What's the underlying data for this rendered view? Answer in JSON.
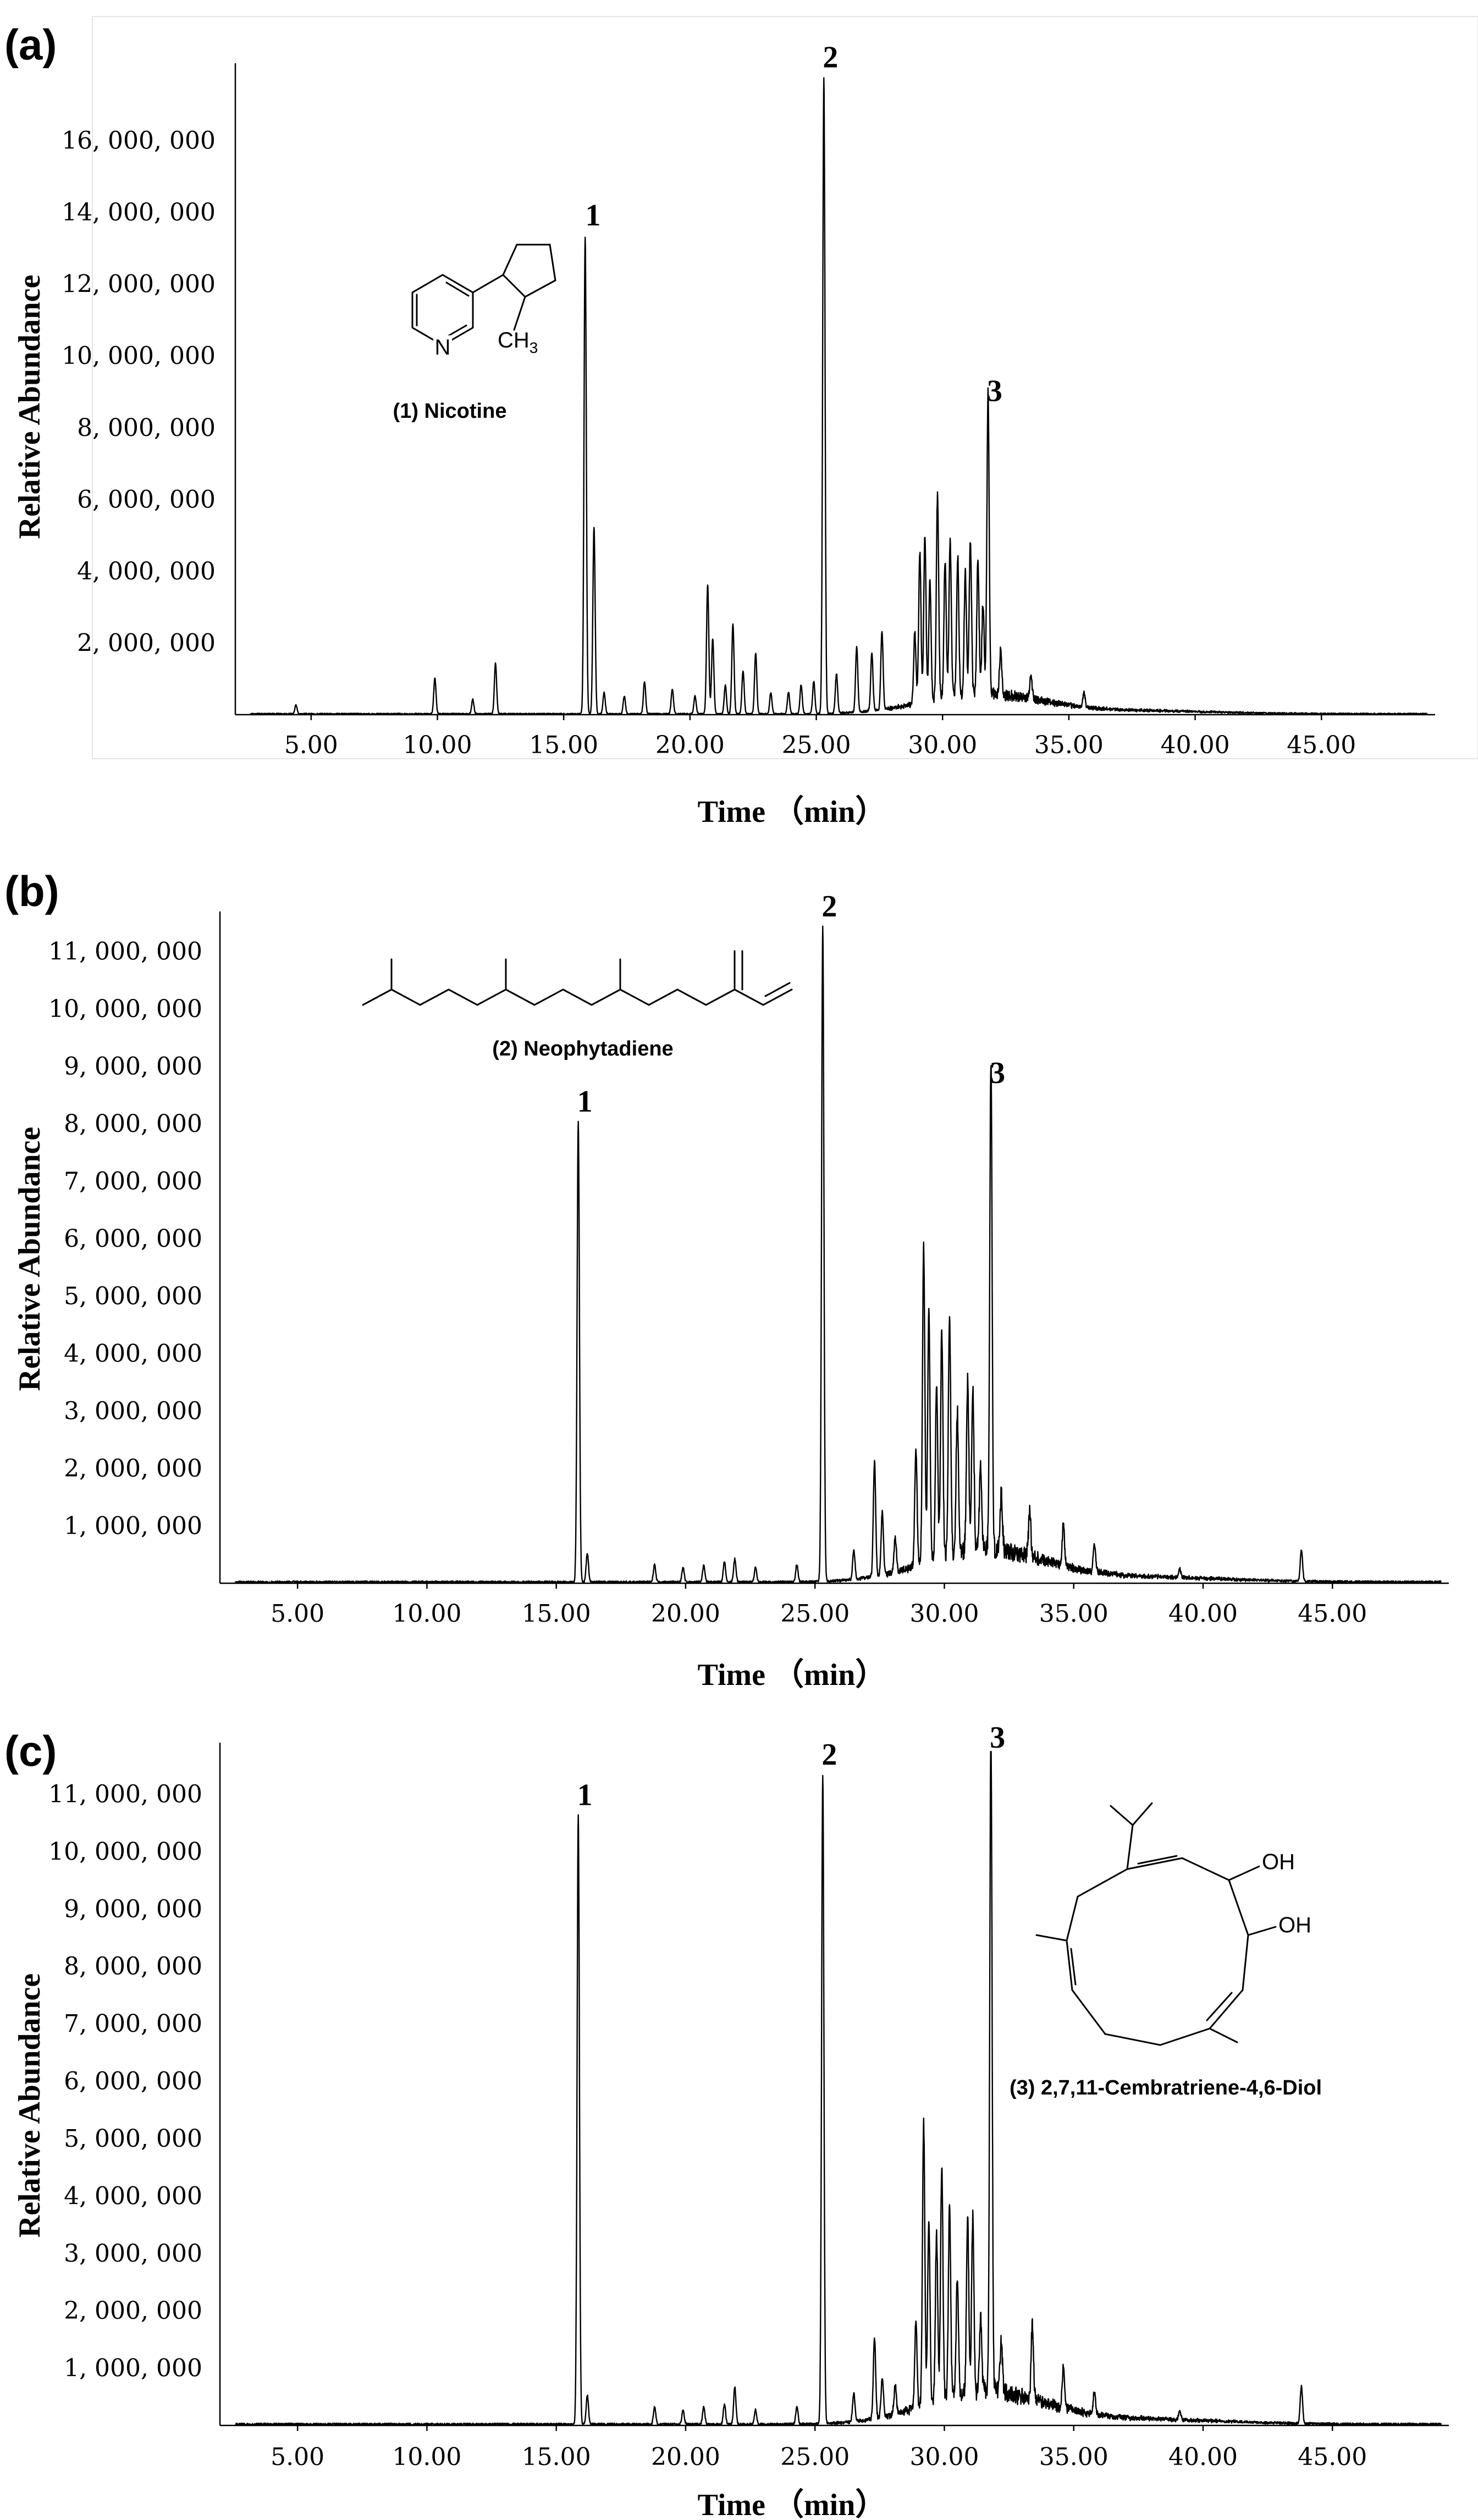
{
  "chart_data": [
    {
      "panel": "(a)",
      "type": "line",
      "xlabel": "Time （min）",
      "ylabel": "Relative Abundance",
      "xlim": [
        2,
        49.5
      ],
      "ylim": [
        0,
        18000000
      ],
      "x_tick_labels": [
        "5.00",
        "10.00",
        "15.00",
        "20.00",
        "25.00",
        "30.00",
        "35.00",
        "40.00",
        "45.00"
      ],
      "x_ticks": [
        5,
        10,
        15,
        20,
        25,
        30,
        35,
        40,
        45
      ],
      "y_tick_labels": [
        "2, 000, 000",
        "4, 000, 000",
        "6, 000, 000",
        "8, 000, 000",
        "10, 000, 000",
        "12, 000, 000",
        "14, 000, 000",
        "16, 000, 000"
      ],
      "y_ticks": [
        2000000,
        4000000,
        6000000,
        8000000,
        10000000,
        12000000,
        14000000,
        16000000
      ],
      "peak_labels": [
        {
          "label": "1",
          "x": 15.9,
          "y": 13300000
        },
        {
          "label": "2",
          "x": 25.3,
          "y": 17700000
        },
        {
          "label": "3",
          "x": 31.8,
          "y": 8400000
        }
      ],
      "molecule_caption": "(1)  Nicotine",
      "series": [
        {
          "peaks": [
            [
              4.4,
              250000
            ],
            [
              9.9,
              1000000
            ],
            [
              11.4,
              400000
            ],
            [
              12.3,
              1400000
            ],
            [
              15.85,
              13300000
            ],
            [
              16.2,
              5200000
            ],
            [
              16.6,
              600000
            ],
            [
              17.4,
              500000
            ],
            [
              18.2,
              900000
            ],
            [
              19.3,
              700000
            ],
            [
              20.2,
              500000
            ],
            [
              20.7,
              3600000
            ],
            [
              20.9,
              2100000
            ],
            [
              21.4,
              800000
            ],
            [
              21.7,
              2500000
            ],
            [
              22.1,
              1200000
            ],
            [
              22.6,
              1700000
            ],
            [
              23.2,
              600000
            ],
            [
              23.9,
              600000
            ],
            [
              24.4,
              800000
            ],
            [
              24.9,
              900000
            ],
            [
              25.3,
              17700000
            ],
            [
              25.8,
              1100000
            ],
            [
              26.6,
              1800000
            ],
            [
              27.2,
              1600000
            ],
            [
              27.6,
              2200000
            ],
            [
              28.9,
              2000000
            ],
            [
              29.1,
              4200000
            ],
            [
              29.3,
              4600000
            ],
            [
              29.5,
              3300000
            ],
            [
              29.8,
              5700000
            ],
            [
              30.1,
              3800000
            ],
            [
              30.3,
              4400000
            ],
            [
              30.6,
              3900000
            ],
            [
              30.9,
              3400000
            ],
            [
              31.1,
              4300000
            ],
            [
              31.4,
              3700000
            ],
            [
              31.6,
              2500000
            ],
            [
              31.8,
              8400000
            ],
            [
              32.3,
              1200000
            ],
            [
              33.5,
              700000
            ],
            [
              35.6,
              400000
            ]
          ]
        }
      ]
    },
    {
      "panel": "(b)",
      "type": "line",
      "xlabel": "Time （min）",
      "ylabel": "Relative Abundance",
      "xlim": [
        2,
        49.5
      ],
      "ylim": [
        0,
        11600000
      ],
      "x_tick_labels": [
        "5.00",
        "10.00",
        "15.00",
        "20.00",
        "25.00",
        "30.00",
        "35.00",
        "40.00",
        "45.00"
      ],
      "x_ticks": [
        5,
        10,
        15,
        20,
        25,
        30,
        35,
        40,
        45
      ],
      "y_tick_labels": [
        "1, 000, 000",
        "2, 000, 000",
        "3, 000, 000",
        "4, 000, 000",
        "5, 000, 000",
        "6, 000, 000",
        "7, 000, 000",
        "8, 000, 000",
        "9, 000, 000",
        "10, 000, 000",
        "11, 000, 000"
      ],
      "y_ticks": [
        1000000,
        2000000,
        3000000,
        4000000,
        5000000,
        6000000,
        7000000,
        8000000,
        9000000,
        10000000,
        11000000
      ],
      "peak_labels": [
        {
          "label": "1",
          "x": 15.85,
          "y": 8000000
        },
        {
          "label": "2",
          "x": 25.3,
          "y": 11400000
        },
        {
          "label": "3",
          "x": 31.8,
          "y": 8500000
        }
      ],
      "molecule_caption": "(2)  Neophytadiene",
      "series": [
        {
          "peaks": [
            [
              15.85,
              8000000
            ],
            [
              16.2,
              500000
            ],
            [
              18.8,
              300000
            ],
            [
              19.9,
              250000
            ],
            [
              20.7,
              300000
            ],
            [
              21.5,
              350000
            ],
            [
              21.9,
              400000
            ],
            [
              22.7,
              250000
            ],
            [
              24.3,
              300000
            ],
            [
              25.3,
              11400000
            ],
            [
              26.5,
              500000
            ],
            [
              27.3,
              2000000
            ],
            [
              27.6,
              1100000
            ],
            [
              28.1,
              600000
            ],
            [
              28.9,
              2000000
            ],
            [
              29.2,
              5500000
            ],
            [
              29.4,
              4400000
            ],
            [
              29.7,
              3000000
            ],
            [
              29.9,
              3900000
            ],
            [
              30.2,
              4200000
            ],
            [
              30.5,
              2500000
            ],
            [
              30.9,
              3000000
            ],
            [
              31.1,
              2800000
            ],
            [
              31.4,
              1500000
            ],
            [
              31.8,
              8500000
            ],
            [
              32.2,
              1000000
            ],
            [
              33.3,
              800000
            ],
            [
              34.6,
              700000
            ],
            [
              35.8,
              500000
            ],
            [
              39.1,
              150000
            ],
            [
              43.8,
              550000
            ]
          ]
        }
      ]
    },
    {
      "panel": "(c)",
      "type": "line",
      "xlabel": "Time （min）",
      "ylabel": "Relative Abundance",
      "xlim": [
        2,
        49.5
      ],
      "ylim": [
        0,
        11800000
      ],
      "x_tick_labels": [
        "5.00",
        "10.00",
        "15.00",
        "20.00",
        "25.00",
        "30.00",
        "35.00",
        "40.00",
        "45.00"
      ],
      "x_ticks": [
        5,
        10,
        15,
        20,
        25,
        30,
        35,
        40,
        45
      ],
      "y_tick_labels": [
        "1, 000, 000",
        "2, 000, 000",
        "3, 000, 000",
        "4, 000, 000",
        "5, 000, 000",
        "6, 000, 000",
        "7, 000, 000",
        "8, 000, 000",
        "9, 000, 000",
        "10, 000, 000",
        "11, 000, 000"
      ],
      "y_ticks": [
        1000000,
        2000000,
        3000000,
        4000000,
        5000000,
        6000000,
        7000000,
        8000000,
        9000000,
        10000000,
        11000000
      ],
      "peak_labels": [
        {
          "label": "1",
          "x": 15.85,
          "y": 10600000
        },
        {
          "label": "2",
          "x": 25.3,
          "y": 11300000
        },
        {
          "label": "3",
          "x": 31.8,
          "y": 11600000
        }
      ],
      "molecule_caption": "(3)  2,7,11-Cembratriene-4,6-Diol",
      "series": [
        {
          "peaks": [
            [
              15.85,
              10600000
            ],
            [
              16.2,
              500000
            ],
            [
              18.8,
              300000
            ],
            [
              19.9,
              250000
            ],
            [
              20.7,
              300000
            ],
            [
              21.5,
              350000
            ],
            [
              21.9,
              650000
            ],
            [
              22.7,
              250000
            ],
            [
              24.3,
              300000
            ],
            [
              25.3,
              11300000
            ],
            [
              26.5,
              500000
            ],
            [
              27.3,
              1400000
            ],
            [
              27.6,
              700000
            ],
            [
              28.1,
              500000
            ],
            [
              28.9,
              1500000
            ],
            [
              29.2,
              4900000
            ],
            [
              29.4,
              3200000
            ],
            [
              29.7,
              2900000
            ],
            [
              29.9,
              4100000
            ],
            [
              30.2,
              3300000
            ],
            [
              30.5,
              2000000
            ],
            [
              30.9,
              3000000
            ],
            [
              31.1,
              3100000
            ],
            [
              31.4,
              1300000
            ],
            [
              31.8,
              11600000
            ],
            [
              32.2,
              900000
            ],
            [
              33.4,
              1300000
            ],
            [
              34.6,
              700000
            ],
            [
              35.8,
              400000
            ],
            [
              39.1,
              150000
            ],
            [
              43.8,
              650000
            ]
          ]
        }
      ]
    }
  ]
}
